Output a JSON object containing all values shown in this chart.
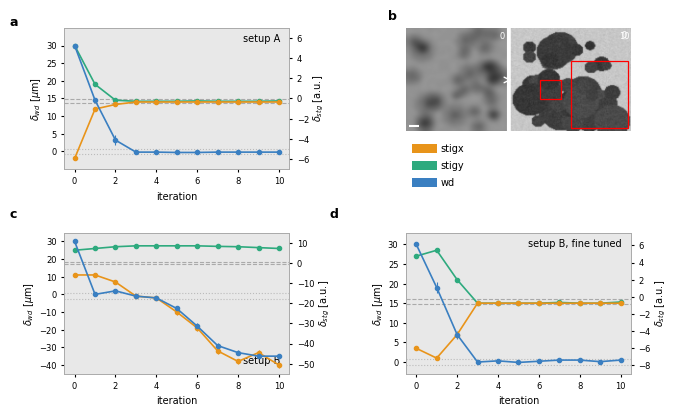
{
  "colors": {
    "stigx": "#E8941A",
    "stigy": "#2EAA7E",
    "wd": "#3A7FC1"
  },
  "panel_a": {
    "title": "setup A",
    "iterations": [
      0,
      1,
      2,
      3,
      4,
      5,
      6,
      7,
      8,
      9,
      10
    ],
    "wd_y": [
      30,
      14.5,
      3.2,
      -0.2,
      -0.2,
      -0.3,
      -0.3,
      -0.2,
      -0.2,
      -0.2,
      -0.2
    ],
    "wd_err": [
      0.1,
      0.5,
      1.5,
      0.6,
      0.4,
      0.4,
      0.4,
      0.4,
      0.4,
      0.4,
      0.4
    ],
    "stigy_y": [
      30,
      19,
      14.5,
      14.2,
      14.2,
      14.2,
      14.3,
      14.2,
      14.2,
      14.2,
      14.3
    ],
    "stigy_err": [
      0.1,
      0.3,
      0.3,
      0.3,
      0.2,
      0.2,
      0.2,
      0.2,
      0.2,
      0.2,
      0.2
    ],
    "stigx_y": [
      -2,
      12,
      13.3,
      14.0,
      14.0,
      14.0,
      14.0,
      14.0,
      14.0,
      14.0,
      14.0
    ],
    "stigx_err": [
      0.1,
      0.3,
      0.3,
      0.2,
      0.2,
      0.2,
      0.2,
      0.2,
      0.2,
      0.2,
      0.2
    ],
    "ylim_left": [
      -5,
      35
    ],
    "ylim_right": [
      -7,
      7
    ],
    "yticks_left": [
      0,
      5,
      10,
      15,
      20,
      25,
      30
    ],
    "yticks_right": [
      -6,
      -4,
      -2,
      0,
      2,
      4,
      6
    ],
    "hline_dash": [
      14.8,
      13.7
    ],
    "hline_dot": [
      0.8,
      -0.8
    ]
  },
  "panel_c": {
    "title": "setup B",
    "iterations": [
      0,
      1,
      2,
      3,
      4,
      5,
      6,
      7,
      8,
      9,
      10
    ],
    "wd_y": [
      30,
      0,
      2,
      -1,
      -2,
      -8,
      -18,
      -29,
      -33,
      -35,
      -35
    ],
    "wd_err": [
      0.1,
      0.5,
      0.5,
      0.5,
      0.5,
      1.5,
      2.0,
      1.5,
      1.5,
      1.5,
      1.5
    ],
    "stigy_y": [
      25,
      26,
      27,
      27.5,
      27.5,
      27.5,
      27.5,
      27.2,
      27.0,
      26.5,
      26.0
    ],
    "stigy_err": [
      0.1,
      0.3,
      0.3,
      0.3,
      0.3,
      0.3,
      0.3,
      0.3,
      0.3,
      0.3,
      0.3
    ],
    "stigx_y": [
      11,
      11,
      7,
      -1,
      -2,
      -10,
      -19,
      -32,
      -38,
      -33,
      -40
    ],
    "stigx_err": [
      0.1,
      0.3,
      0.3,
      0.3,
      0.3,
      1.5,
      2.0,
      1.5,
      1.5,
      1.5,
      1.5
    ],
    "ylim_left": [
      -45,
      35
    ],
    "ylim_right": [
      -55,
      15
    ],
    "yticks_left": [
      -40,
      -30,
      -20,
      -10,
      0,
      10,
      20,
      30
    ],
    "yticks_right": [
      -50,
      -40,
      -30,
      -20,
      -10,
      0,
      10
    ],
    "hline_dash": [
      18.5,
      17.0
    ],
    "hline_dot": [
      0.5,
      -2.5
    ]
  },
  "panel_d": {
    "title": "setup B, fine tuned",
    "iterations": [
      0,
      1,
      2,
      3,
      4,
      5,
      6,
      7,
      8,
      9,
      10
    ],
    "wd_y": [
      30,
      19,
      7,
      0,
      0.3,
      -0.1,
      0.2,
      0.5,
      0.5,
      0.1,
      0.5
    ],
    "wd_err": [
      0.1,
      1.5,
      1.0,
      0.5,
      0.5,
      0.4,
      0.5,
      0.5,
      0.5,
      0.5,
      0.5
    ],
    "stigy_y": [
      27,
      28.5,
      21,
      15,
      15,
      15,
      15,
      15.2,
      15,
      15,
      15.3
    ],
    "stigy_err": [
      0.1,
      0.5,
      0.5,
      0.3,
      0.3,
      0.3,
      0.3,
      0.3,
      0.3,
      0.3,
      0.3
    ],
    "stigx_y": [
      3.5,
      1.0,
      7,
      15,
      15,
      15,
      15,
      15,
      15,
      15,
      15
    ],
    "stigx_err": [
      0.1,
      0.3,
      0.3,
      0.3,
      0.3,
      0.3,
      0.3,
      0.3,
      0.3,
      0.3,
      0.3
    ],
    "ylim_left": [
      -3,
      33
    ],
    "ylim_right": [
      -9,
      7.5
    ],
    "yticks_left": [
      0,
      5,
      10,
      15,
      20,
      25,
      30
    ],
    "yticks_right": [
      -8,
      -6,
      -4,
      -2,
      0,
      2,
      4,
      6
    ],
    "hline_dash": [
      16.0,
      14.8
    ],
    "hline_dot": [
      0.8,
      -0.8
    ]
  },
  "xlabel": "iteration",
  "bg_color": "#e8e8e8"
}
